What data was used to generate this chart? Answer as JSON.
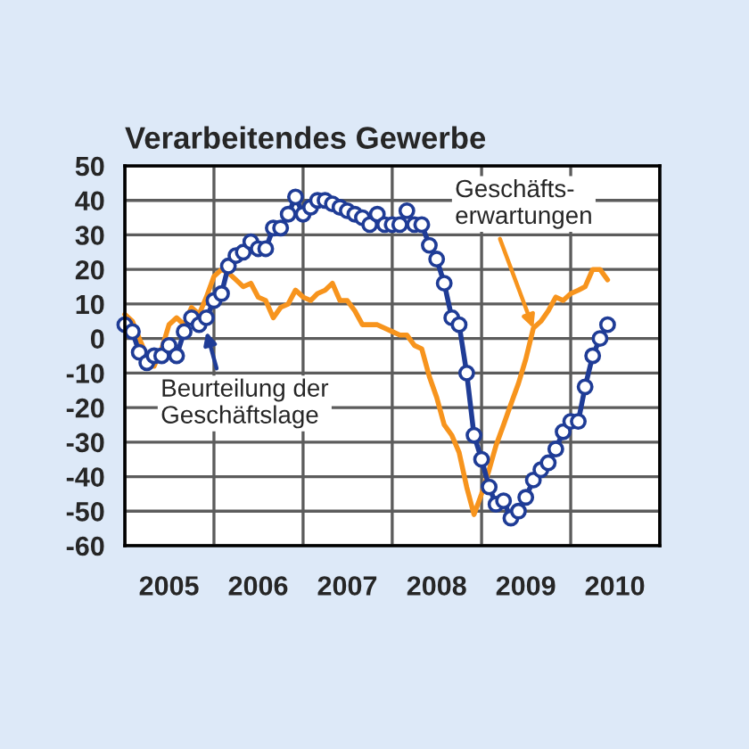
{
  "chart_data": {
    "type": "line",
    "title": "Verarbeitendes Gewerbe",
    "x": [
      "2005-01",
      "2005-02",
      "2005-03",
      "2005-04",
      "2005-05",
      "2005-06",
      "2005-07",
      "2005-08",
      "2005-09",
      "2005-10",
      "2005-11",
      "2005-12",
      "2006-01",
      "2006-02",
      "2006-03",
      "2006-04",
      "2006-05",
      "2006-06",
      "2006-07",
      "2006-08",
      "2006-09",
      "2006-10",
      "2006-11",
      "2006-12",
      "2007-01",
      "2007-02",
      "2007-03",
      "2007-04",
      "2007-05",
      "2007-06",
      "2007-07",
      "2007-08",
      "2007-09",
      "2007-10",
      "2007-11",
      "2007-12",
      "2008-01",
      "2008-02",
      "2008-03",
      "2008-04",
      "2008-05",
      "2008-06",
      "2008-07",
      "2008-08",
      "2008-09",
      "2008-10",
      "2008-11",
      "2008-12",
      "2009-01",
      "2009-02",
      "2009-03",
      "2009-04",
      "2009-05",
      "2009-06",
      "2009-07",
      "2009-08",
      "2009-09",
      "2009-10",
      "2009-11",
      "2009-12",
      "2010-01",
      "2010-02",
      "2010-03",
      "2010-04",
      "2010-05",
      "2010-06"
    ],
    "series": [
      {
        "color": "#1f3c96",
        "marker": "circle",
        "values": [
          4,
          2,
          -4,
          -7,
          -5,
          -5,
          -2,
          -5,
          2,
          6,
          4,
          6,
          11,
          13,
          21,
          24,
          25,
          28,
          26,
          26,
          32,
          32,
          36,
          41,
          36,
          38,
          40,
          40,
          39,
          38,
          37,
          36,
          35,
          33,
          36,
          33,
          33,
          33,
          37,
          33,
          33,
          27,
          23,
          16,
          6,
          4,
          -10,
          -28,
          -35,
          -43,
          -48,
          -47,
          -52,
          -50,
          -46,
          -41,
          -38,
          -36,
          -32,
          -27,
          -24,
          -24,
          -14,
          -5,
          0,
          4
        ]
      },
      {
        "color": "#f7941d",
        "marker": "none",
        "values": [
          7,
          5,
          0,
          -5,
          -8,
          -3,
          4,
          6,
          4,
          9,
          7,
          12,
          18,
          20,
          19,
          17,
          15,
          16,
          12,
          11,
          6,
          9,
          10,
          14,
          12,
          11,
          13,
          14,
          16,
          11,
          11,
          8,
          4,
          4,
          4,
          3,
          2,
          1,
          1,
          -2,
          -3,
          -11,
          -17,
          -25,
          -28,
          -33,
          -43,
          -51,
          -45,
          -38,
          -31,
          -25,
          -19,
          -13,
          -6,
          3,
          5,
          8,
          12,
          11,
          13,
          14,
          15,
          20,
          20,
          17
        ]
      }
    ],
    "xlim": [
      "2005-01",
      "2011-01"
    ],
    "xticks": [
      {
        "value": "2005-01",
        "label": null
      },
      {
        "value": "2005-07",
        "label": "2005"
      },
      {
        "value": "2006-01",
        "label": null
      },
      {
        "value": "2006-07",
        "label": "2006"
      },
      {
        "value": "2007-01",
        "label": null
      },
      {
        "value": "2007-07",
        "label": "2007"
      },
      {
        "value": "2008-01",
        "label": null
      },
      {
        "value": "2008-07",
        "label": "2008"
      },
      {
        "value": "2009-01",
        "label": null
      },
      {
        "value": "2009-07",
        "label": "2009"
      },
      {
        "value": "2010-01",
        "label": null
      },
      {
        "value": "2010-07",
        "label": "2010"
      },
      {
        "value": "2011-01",
        "label": null
      }
    ],
    "ylim": [
      -60,
      50
    ],
    "yticks": [
      -60,
      -50,
      -40,
      -30,
      -20,
      -10,
      0,
      10,
      20,
      30,
      40,
      50
    ],
    "grid": true,
    "annotations": [
      {
        "text": "Beurteilung der\nGeschäftslage",
        "x": "2005-12",
        "y": 2
      },
      {
        "text": "Geschäfts-\nerwartungen",
        "x": "2009-08",
        "y": 3
      }
    ]
  }
}
